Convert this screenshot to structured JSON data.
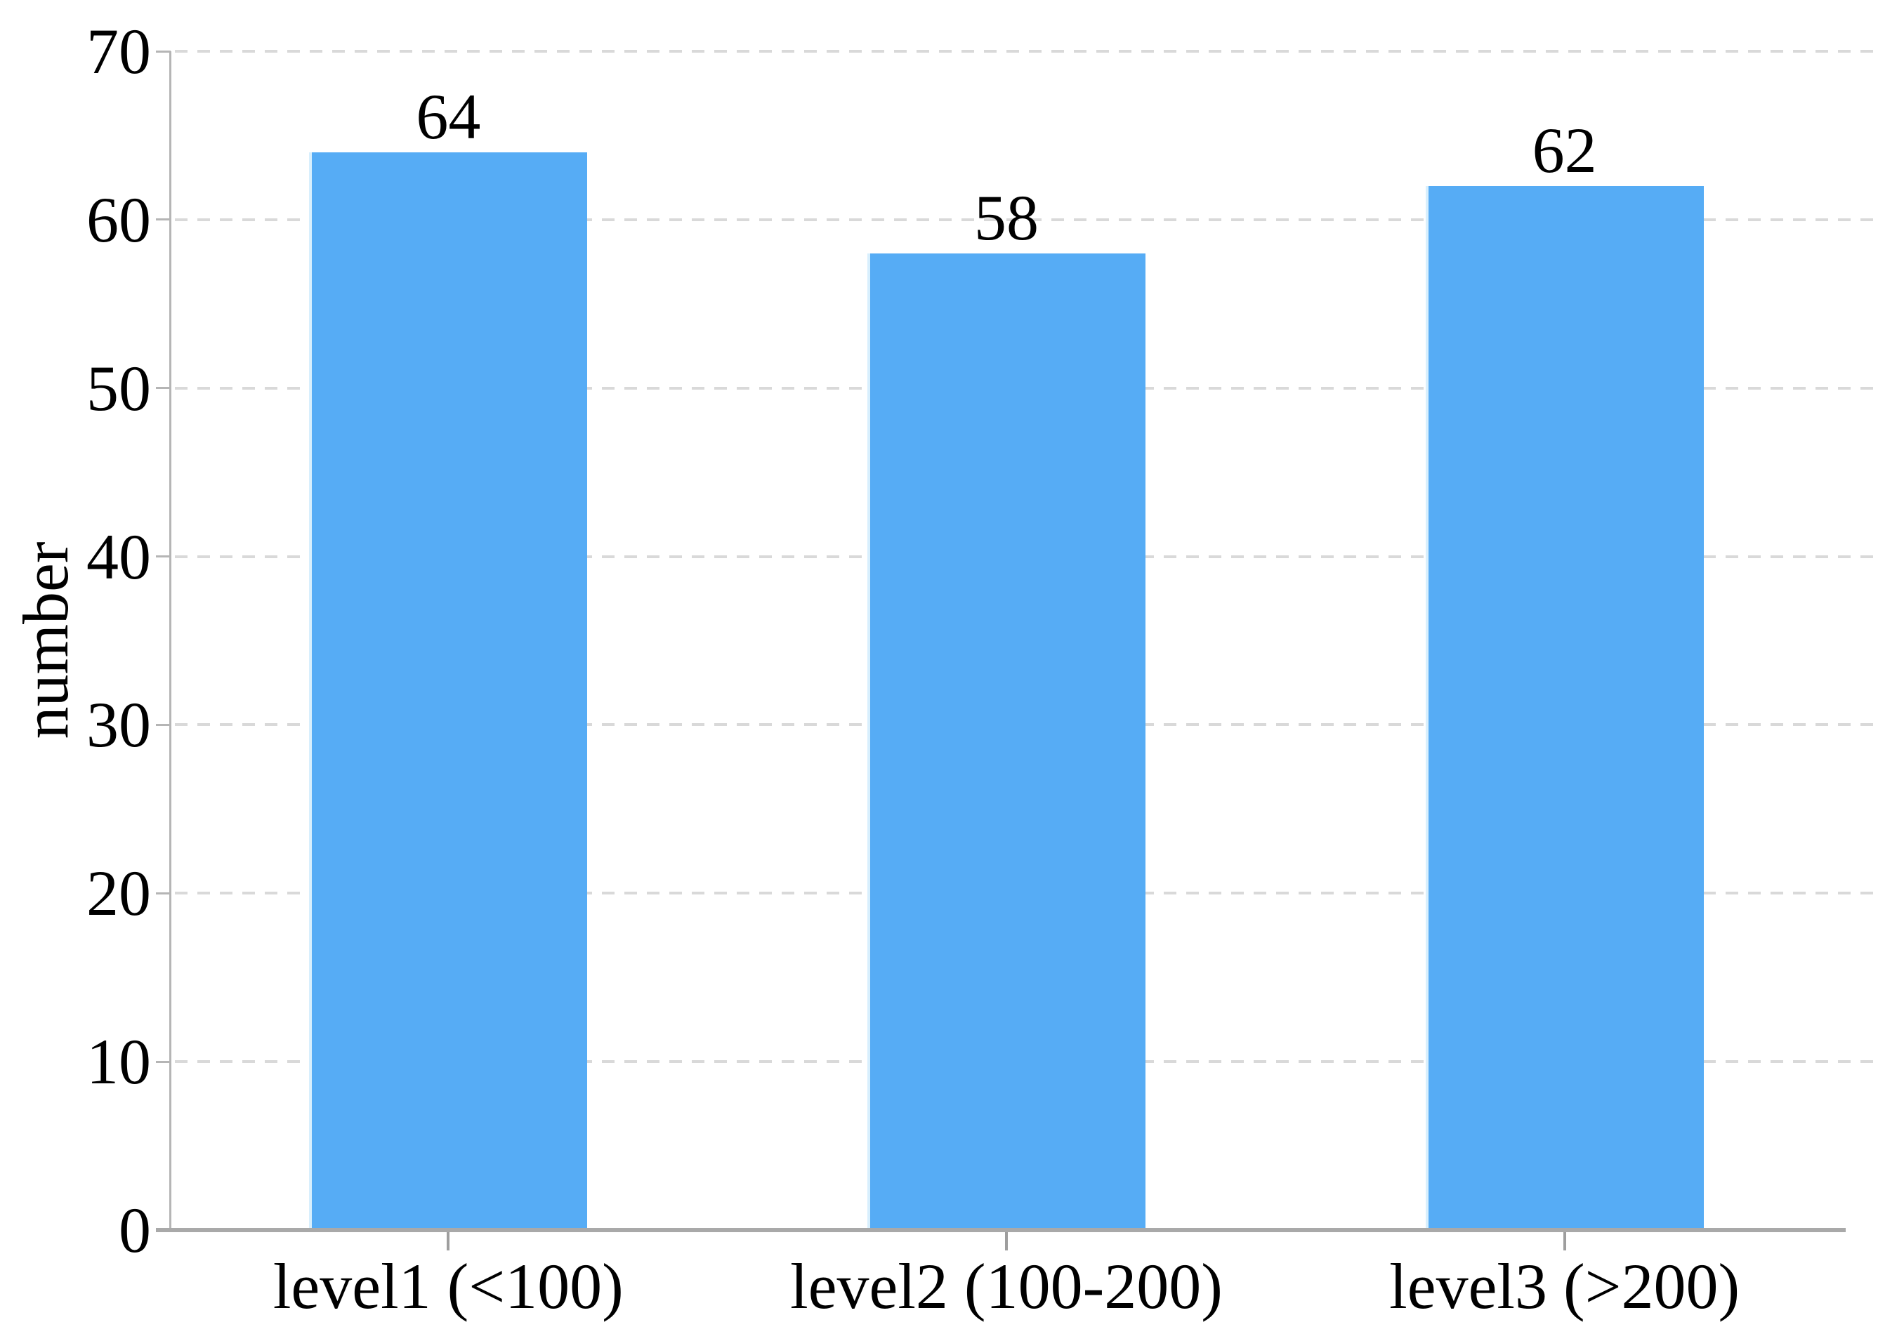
{
  "chart_data": {
    "type": "bar",
    "title": "",
    "xlabel": "",
    "ylabel": "number",
    "categories": [
      "level1 (<100)",
      "level2 (100-200)",
      "level3 (>200)"
    ],
    "values": [
      64,
      58,
      62
    ],
    "data_labels": [
      "64",
      "58",
      "62"
    ],
    "ylim": [
      0,
      70
    ],
    "yticks": [
      0,
      10,
      20,
      30,
      40,
      50,
      60,
      70
    ],
    "ytick_labels": [
      "0",
      "10",
      "20",
      "30",
      "40",
      "50",
      "60",
      "70"
    ],
    "grid": "horizontal-dashed",
    "legend": "none",
    "bar_color": "#56ACF5",
    "grid_color": "#d9d9d9",
    "x_axis_color": "#a9a9a9",
    "y_axis_color": "#b5b5b5",
    "text_color": "#000000"
  }
}
